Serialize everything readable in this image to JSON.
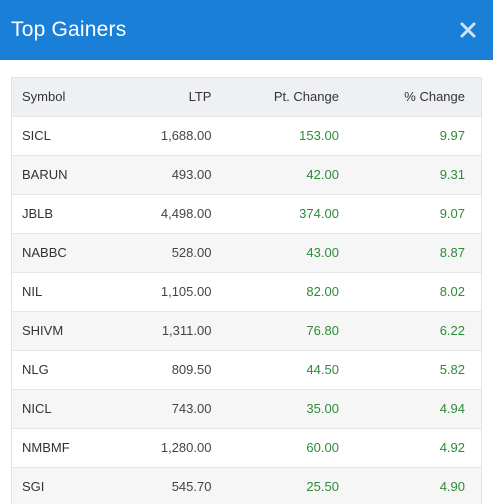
{
  "header": {
    "title": "Top Gainers",
    "close_icon": "close-icon"
  },
  "table": {
    "columns": [
      "Symbol",
      "LTP",
      "Pt. Change",
      "% Change"
    ],
    "rows": [
      {
        "symbol": "SICL",
        "ltp": "1,688.00",
        "pt_change": "153.00",
        "pct_change": "9.97"
      },
      {
        "symbol": "BARUN",
        "ltp": "493.00",
        "pt_change": "42.00",
        "pct_change": "9.31"
      },
      {
        "symbol": "JBLB",
        "ltp": "4,498.00",
        "pt_change": "374.00",
        "pct_change": "9.07"
      },
      {
        "symbol": "NABBC",
        "ltp": "528.00",
        "pt_change": "43.00",
        "pct_change": "8.87"
      },
      {
        "symbol": "NIL",
        "ltp": "1,105.00",
        "pt_change": "82.00",
        "pct_change": "8.02"
      },
      {
        "symbol": "SHIVM",
        "ltp": "1,311.00",
        "pt_change": "76.80",
        "pct_change": "6.22"
      },
      {
        "symbol": "NLG",
        "ltp": "809.50",
        "pt_change": "44.50",
        "pct_change": "5.82"
      },
      {
        "symbol": "NICL",
        "ltp": "743.00",
        "pt_change": "35.00",
        "pct_change": "4.94"
      },
      {
        "symbol": "NMBMF",
        "ltp": "1,280.00",
        "pt_change": "60.00",
        "pct_change": "4.92"
      },
      {
        "symbol": "SGI",
        "ltp": "545.70",
        "pt_change": "25.50",
        "pct_change": "4.90"
      }
    ]
  },
  "colors": {
    "header_bg": "#1a7fd6",
    "positive": "#2e8b3a",
    "table_header_bg": "#eef0f3"
  }
}
